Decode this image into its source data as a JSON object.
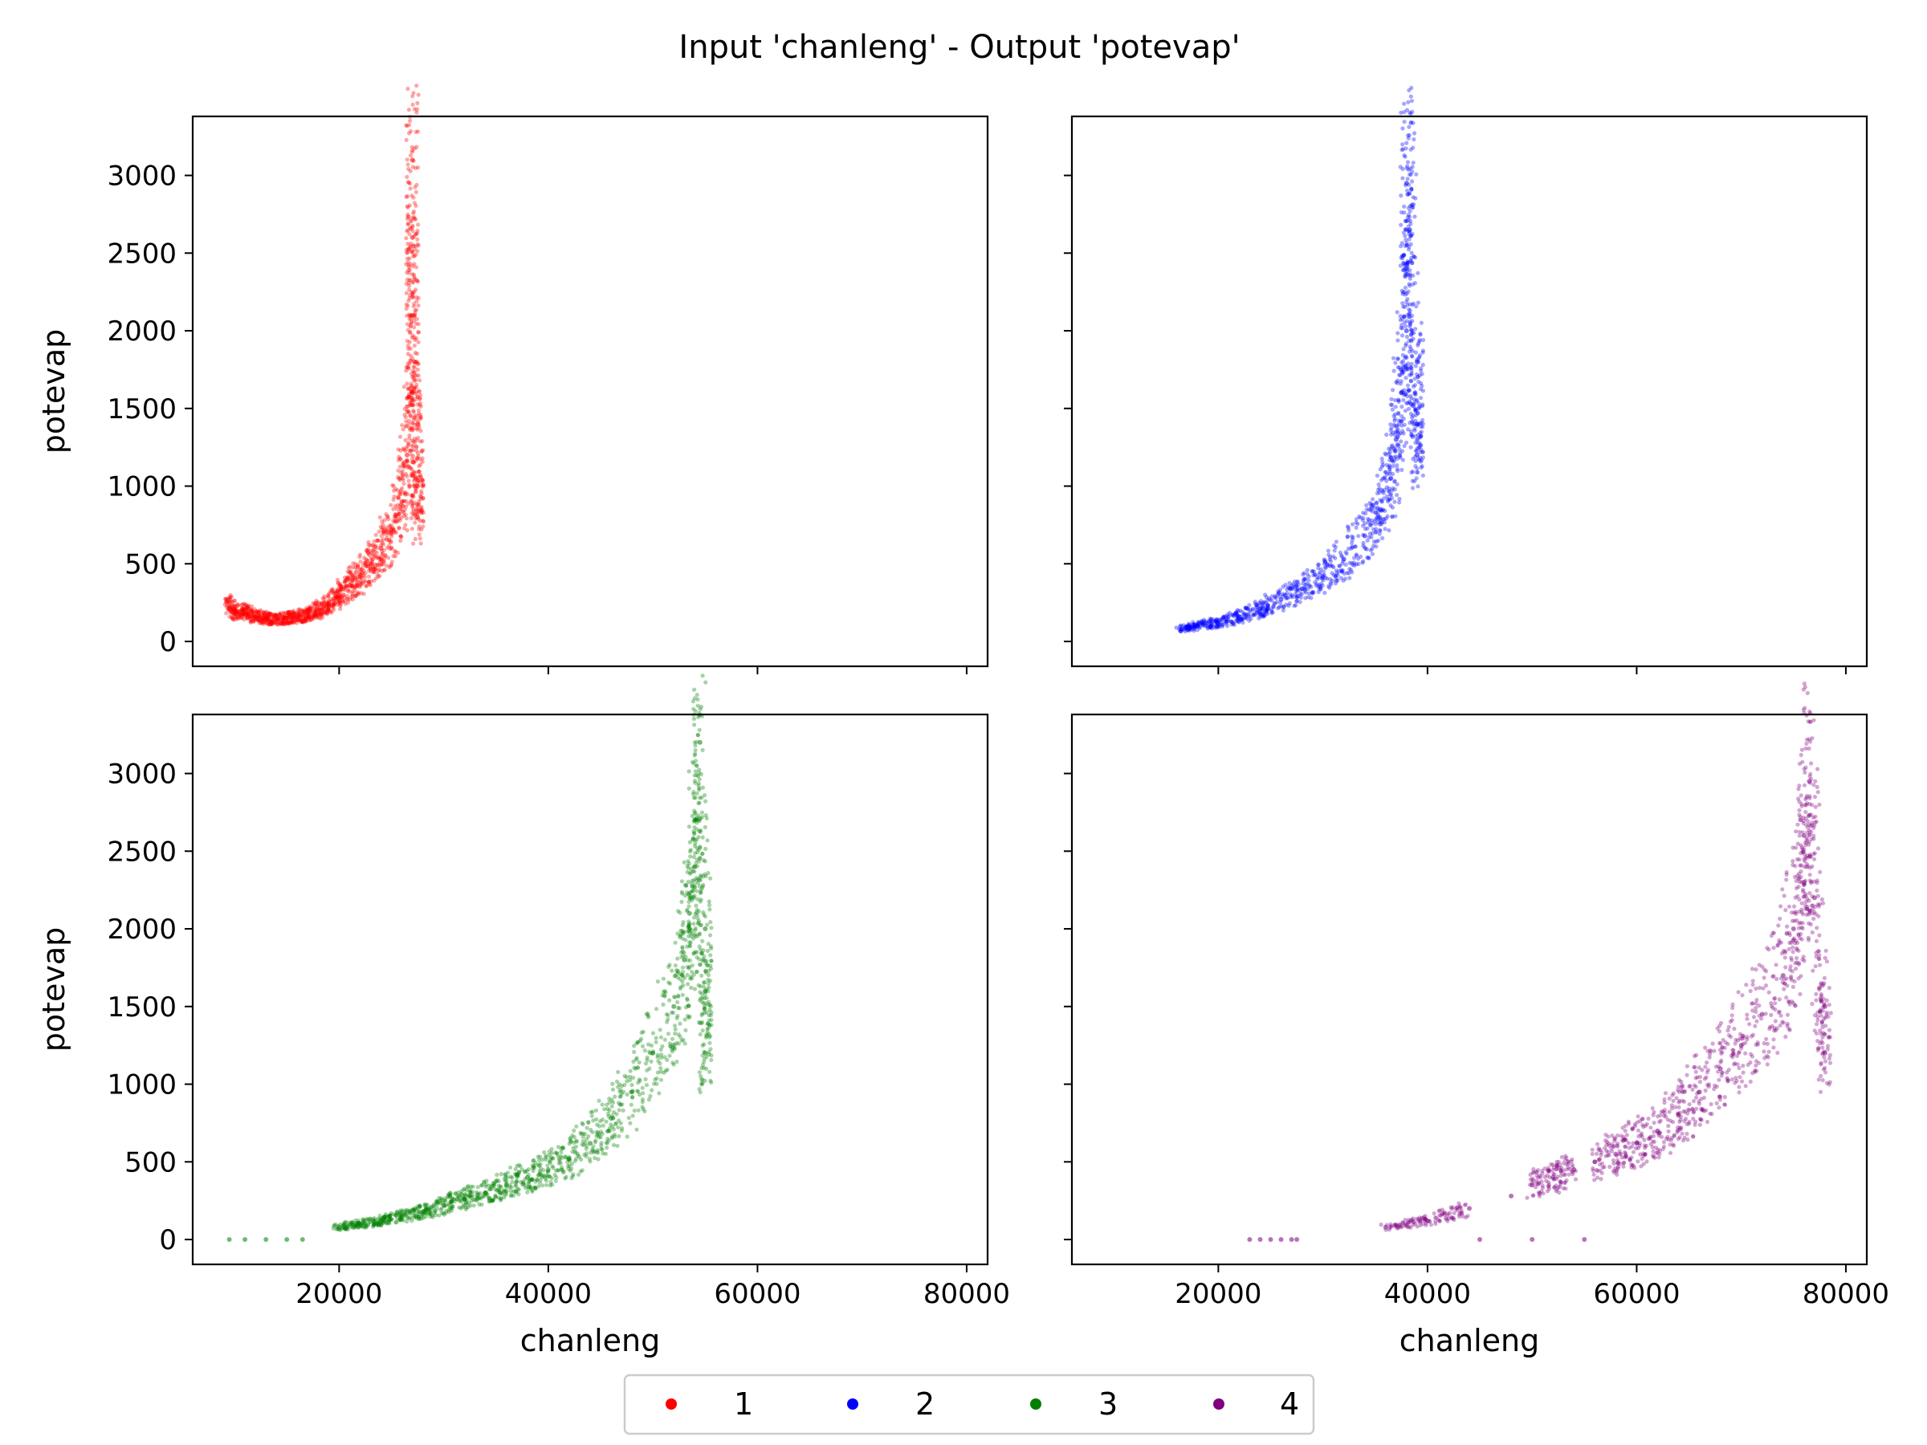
{
  "chart_data": {
    "type": "scatter",
    "title": "Input 'chanleng' - Output 'potevap'",
    "xlabel": "chanleng",
    "ylabel": "potevap",
    "x_ticks": [
      "20000",
      "40000",
      "60000",
      "80000"
    ],
    "y_ticks": [
      "0",
      "500",
      "1000",
      "1500",
      "2000",
      "2500",
      "3000"
    ],
    "xlim": [
      6000,
      82000
    ],
    "ylim": [
      -160,
      3380
    ],
    "grid": false,
    "legend": {
      "placement": "bottom-center",
      "entries": [
        {
          "label": "1",
          "color": "#ff0000"
        },
        {
          "label": "2",
          "color": "#0000ff"
        },
        {
          "label": "3",
          "color": "#008000"
        },
        {
          "label": "4",
          "color": "#800080"
        }
      ]
    },
    "panels": [
      {
        "series": "1",
        "color": "#ff0000",
        "points": [
          [
            9500,
            250
          ],
          [
            10000,
            180
          ],
          [
            11000,
            200
          ],
          [
            12000,
            160
          ],
          [
            13000,
            150
          ],
          [
            14000,
            140
          ],
          [
            15000,
            150
          ],
          [
            16000,
            160
          ],
          [
            17000,
            170
          ],
          [
            18000,
            200
          ],
          [
            19000,
            240
          ],
          [
            20000,
            300
          ],
          [
            21000,
            360
          ],
          [
            22000,
            420
          ],
          [
            23000,
            500
          ],
          [
            24000,
            600
          ],
          [
            25000,
            720
          ],
          [
            26000,
            900
          ],
          [
            26500,
            1200
          ],
          [
            27000,
            1600
          ],
          [
            27000,
            2100
          ],
          [
            27000,
            2600
          ],
          [
            27200,
            1800
          ],
          [
            27500,
            1400
          ],
          [
            27500,
            1000
          ],
          [
            27500,
            800
          ],
          [
            27000,
            3100
          ]
        ]
      },
      {
        "series": "2",
        "color": "#0000ff",
        "points": [
          [
            16500,
            80
          ],
          [
            18000,
            100
          ],
          [
            20000,
            120
          ],
          [
            22000,
            160
          ],
          [
            24000,
            210
          ],
          [
            26000,
            270
          ],
          [
            28000,
            340
          ],
          [
            30000,
            420
          ],
          [
            32000,
            530
          ],
          [
            34000,
            680
          ],
          [
            35500,
            850
          ],
          [
            36500,
            1050
          ],
          [
            37000,
            1300
          ],
          [
            37500,
            1600
          ],
          [
            38000,
            2000
          ],
          [
            38000,
            2400
          ],
          [
            38300,
            2650
          ],
          [
            39000,
            1800
          ],
          [
            39000,
            1400
          ],
          [
            39000,
            1200
          ],
          [
            38000,
            2950
          ]
        ]
      },
      {
        "series": "3",
        "color": "#008000",
        "points": [
          [
            9500,
            0
          ],
          [
            11000,
            0
          ],
          [
            13000,
            0
          ],
          [
            15000,
            0
          ],
          [
            16500,
            0
          ],
          [
            20000,
            80
          ],
          [
            22000,
            100
          ],
          [
            24000,
            120
          ],
          [
            26000,
            150
          ],
          [
            28000,
            180
          ],
          [
            30000,
            220
          ],
          [
            32000,
            260
          ],
          [
            34000,
            300
          ],
          [
            36000,
            350
          ],
          [
            38000,
            400
          ],
          [
            40000,
            450
          ],
          [
            42000,
            520
          ],
          [
            44000,
            620
          ],
          [
            46000,
            780
          ],
          [
            48000,
            950
          ],
          [
            50000,
            1200
          ],
          [
            52000,
            1500
          ],
          [
            53000,
            1800
          ],
          [
            53500,
            2100
          ],
          [
            54000,
            2400
          ],
          [
            54000,
            2700
          ],
          [
            55000,
            2000
          ],
          [
            55000,
            1600
          ],
          [
            55000,
            1200
          ],
          [
            54500,
            3200
          ]
        ]
      },
      {
        "series": "4",
        "color": "#800080",
        "points": [
          [
            23000,
            0
          ],
          [
            24000,
            0
          ],
          [
            25000,
            0
          ],
          [
            26000,
            0
          ],
          [
            27000,
            0
          ],
          [
            27500,
            0
          ],
          [
            36000,
            80
          ],
          [
            40000,
            120
          ],
          [
            44000,
            200
          ],
          [
            48000,
            280
          ],
          [
            50000,
            350
          ],
          [
            52000,
            400
          ],
          [
            54000,
            450
          ],
          [
            56000,
            500
          ],
          [
            58000,
            550
          ],
          [
            60000,
            620
          ],
          [
            62000,
            700
          ],
          [
            64000,
            800
          ],
          [
            66000,
            950
          ],
          [
            68000,
            1100
          ],
          [
            70000,
            1250
          ],
          [
            72000,
            1450
          ],
          [
            74000,
            1700
          ],
          [
            75000,
            2000
          ],
          [
            76000,
            2300
          ],
          [
            76000,
            2600
          ],
          [
            78000,
            1500
          ],
          [
            78000,
            1200
          ],
          [
            77000,
            2200
          ],
          [
            76500,
            2950
          ],
          [
            45000,
            0
          ],
          [
            50000,
            0
          ],
          [
            55000,
            0
          ]
        ]
      }
    ]
  }
}
